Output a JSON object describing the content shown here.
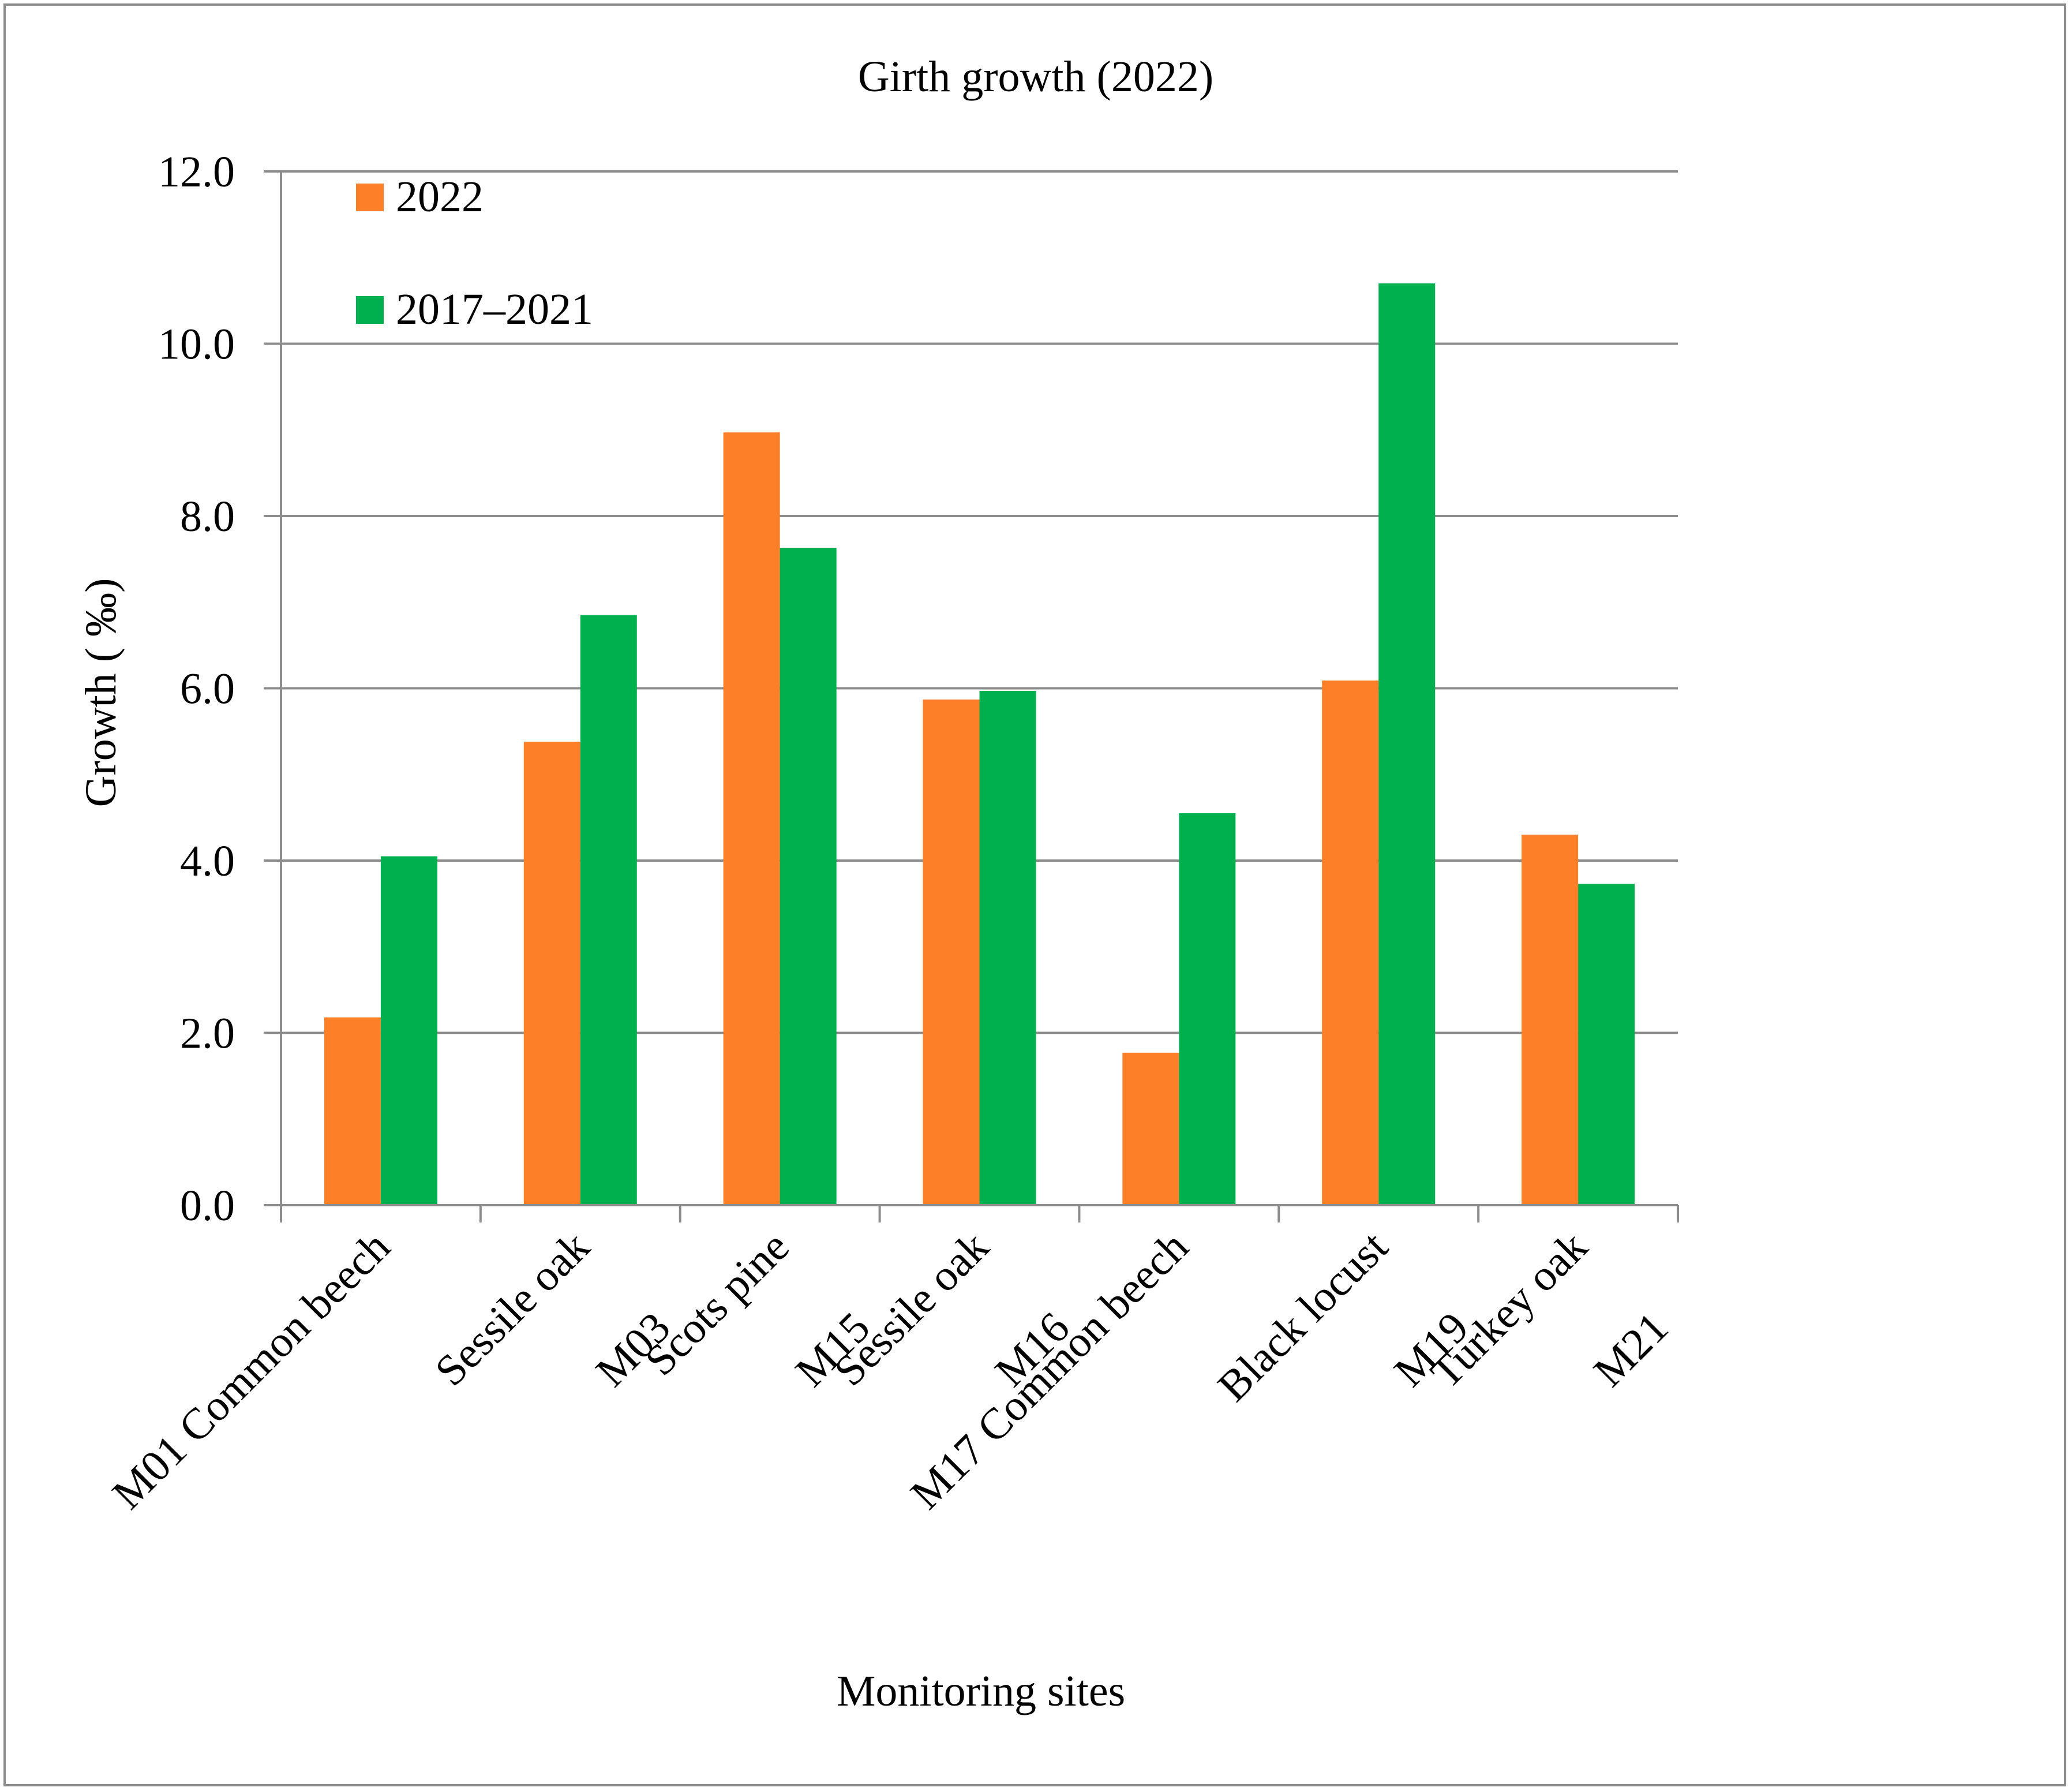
{
  "chart_data": {
    "type": "bar",
    "title": "Girth growth (2022)",
    "xlabel": "Monitoring sites",
    "ylabel": "Growth ( ‰)",
    "ylim": [
      0,
      12
    ],
    "yticks": [
      "0.0",
      "2.0",
      "4.0",
      "6.0",
      "8.0",
      "10.0",
      "12.0"
    ],
    "grid": true,
    "legend_position": "top-left",
    "categories": [
      {
        "line1": "M01 Common beech",
        "line2": ""
      },
      {
        "line1": "Sessile oak",
        "line2": "M03"
      },
      {
        "line1": "Scots pine",
        "line2": "M15"
      },
      {
        "line1": "Sessile oak",
        "line2": "M16"
      },
      {
        "line1": "M17 Common beech",
        "line2": ""
      },
      {
        "line1": "Black locust",
        "line2": "M19"
      },
      {
        "line1": "Turkey oak",
        "line2": "M21"
      }
    ],
    "series": [
      {
        "name": "2022",
        "color": "#fd7f28",
        "values": [
          2.18,
          5.38,
          8.97,
          5.87,
          1.77,
          6.09,
          4.3
        ]
      },
      {
        "name": "2017–2021",
        "color": "#00b04f",
        "values": [
          4.05,
          6.85,
          7.63,
          5.97,
          4.55,
          10.7,
          3.73
        ]
      }
    ],
    "colors": {
      "axis": "#8c8c8c",
      "grid": "#8c8c8c"
    }
  }
}
